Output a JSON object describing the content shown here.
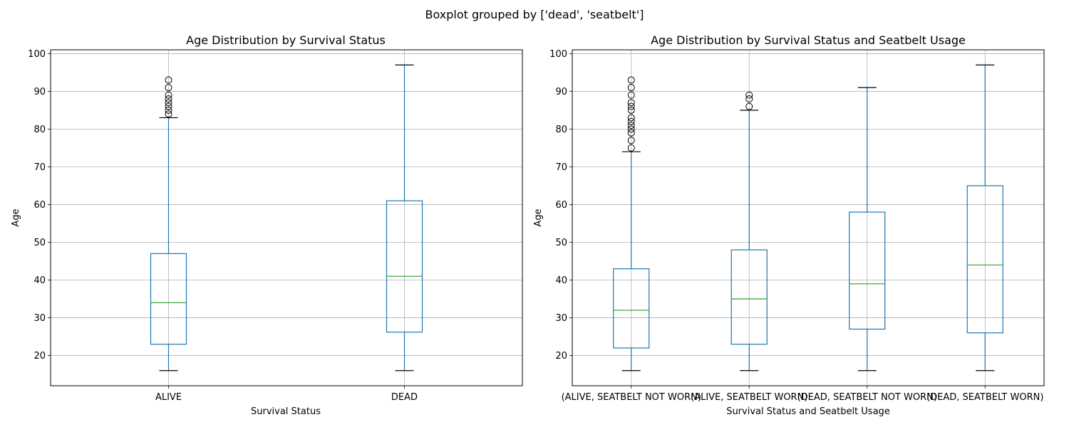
{
  "chart_data": {
    "suptitle": "Boxplot grouped by ['dead', 'seatbelt']",
    "colors": {
      "box": "#1f77b4",
      "median": "#2ca02c",
      "grid": "#b0b0b0",
      "frame": "#000000"
    },
    "panels": [
      {
        "type": "box",
        "title": "Age Distribution by Survival Status",
        "xlabel": "Survival Status",
        "ylabel": "Age",
        "ylim": [
          12,
          101
        ],
        "yticks": [
          20,
          30,
          40,
          50,
          60,
          70,
          80,
          90,
          100
        ],
        "grid": true,
        "groups": [
          {
            "label": "ALIVE",
            "whisker_low": 16,
            "q1": 23,
            "median": 34,
            "q3": 47,
            "whisker_high": 83,
            "outliers": [
              84,
              85,
              86,
              87,
              88,
              89,
              91,
              93
            ]
          },
          {
            "label": "DEAD",
            "whisker_low": 16,
            "q1": 26.2,
            "median": 41,
            "q3": 61,
            "whisker_high": 97,
            "outliers": []
          }
        ]
      },
      {
        "type": "box",
        "title": "Age Distribution by Survival Status and Seatbelt Usage",
        "xlabel": "Survival Status and Seatbelt Usage",
        "ylabel": "Age",
        "ylim": [
          12,
          101
        ],
        "yticks": [
          20,
          30,
          40,
          50,
          60,
          70,
          80,
          90,
          100
        ],
        "grid": true,
        "groups": [
          {
            "label": "(ALIVE, SEATBELT NOT WORN)",
            "whisker_low": 16,
            "q1": 22,
            "median": 32,
            "q3": 43,
            "whisker_high": 74,
            "outliers": [
              75,
              77,
              79,
              80,
              81,
              82,
              83,
              85,
              86,
              87,
              89,
              91,
              93
            ]
          },
          {
            "label": "(ALIVE, SEATBELT WORN)",
            "whisker_low": 16,
            "q1": 23,
            "median": 35,
            "q3": 48,
            "whisker_high": 85,
            "outliers": [
              86,
              88,
              89
            ]
          },
          {
            "label": "(DEAD, SEATBELT NOT WORN)",
            "whisker_low": 16,
            "q1": 27,
            "median": 39,
            "q3": 58,
            "whisker_high": 91,
            "outliers": []
          },
          {
            "label": "(DEAD, SEATBELT WORN)",
            "whisker_low": 16,
            "q1": 26,
            "median": 44,
            "q3": 65,
            "whisker_high": 97,
            "outliers": []
          }
        ]
      }
    ]
  }
}
